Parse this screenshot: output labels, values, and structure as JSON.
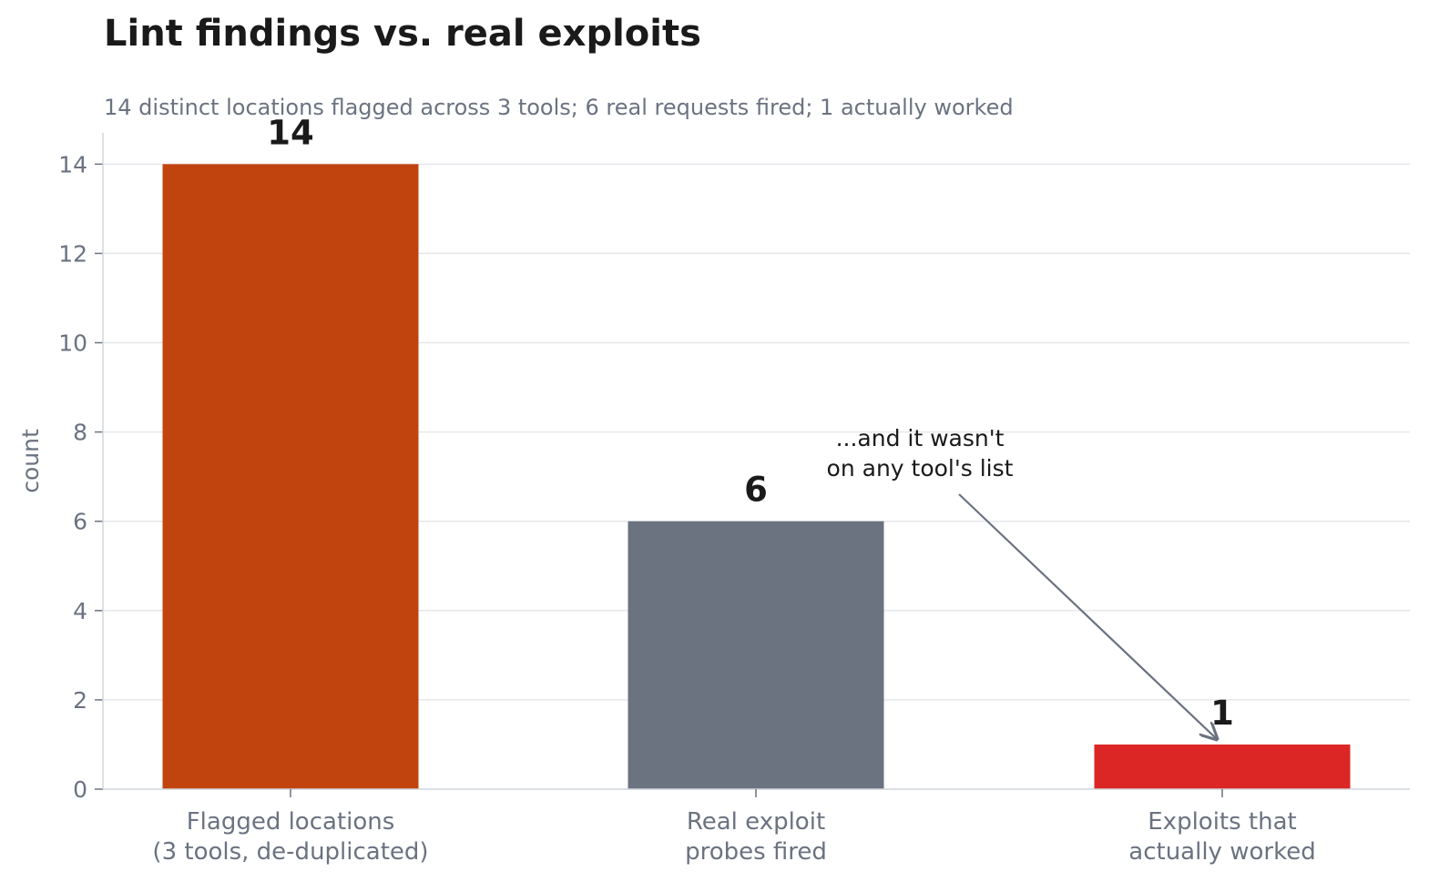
{
  "chart_data": {
    "type": "bar",
    "title": "Lint findings vs. real exploits",
    "subtitle": "14 distinct locations flagged across 3 tools; 6 real requests fired; 1 actually worked",
    "xlabel": "",
    "ylabel": "count",
    "ylim": [
      0,
      14.7
    ],
    "yticks": [
      0,
      2,
      4,
      6,
      8,
      10,
      12,
      14
    ],
    "grid": true,
    "categories": [
      [
        "Flagged locations",
        "(3 tools, de-duplicated)"
      ],
      [
        "Real exploit",
        "probes fired"
      ],
      [
        "Exploits that",
        "actually worked"
      ]
    ],
    "values": [
      14,
      6,
      1
    ],
    "value_labels": [
      "14",
      "6",
      "1"
    ],
    "colors": [
      "#c1440e",
      "#6b7280",
      "#dc2626"
    ],
    "annotation": {
      "lines": [
        "...and it wasn't",
        "on any tool's list"
      ],
      "target_category_index": 2,
      "target_value": 1
    }
  },
  "colors": {
    "text": "#1a1a1a",
    "muted": "#6b7280",
    "grid": "#e5e7eb",
    "axis": "#d1d5db"
  }
}
